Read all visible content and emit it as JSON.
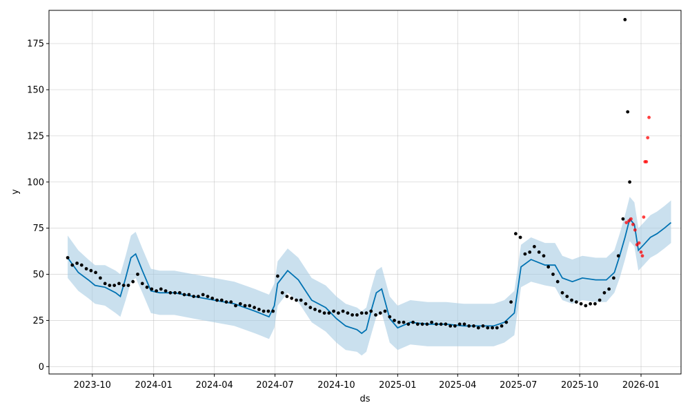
{
  "chart_data": {
    "type": "line",
    "title": "",
    "xlabel": "ds",
    "ylabel": "y",
    "xlim": [
      "2023-07-28",
      "2026-03-02"
    ],
    "ylim": [
      -4,
      193
    ],
    "grid": true,
    "x_tick_labels": [
      "2023-10",
      "2024-01",
      "2024-04",
      "2024-07",
      "2024-10",
      "2025-01",
      "2025-04",
      "2025-07",
      "2025-10",
      "2026-01"
    ],
    "y_tick_labels": [
      "0",
      "25",
      "50",
      "75",
      "100",
      "125",
      "150",
      "175"
    ],
    "colors": {
      "forecast": "#0072B2",
      "band": "#a6cbe3",
      "actual": "#000000",
      "test": "#ff0000"
    },
    "forecast": {
      "x": [
        "2023-08-25",
        "2023-09-10",
        "2023-09-25",
        "2023-10-05",
        "2023-10-20",
        "2023-11-05",
        "2023-11-12",
        "2023-11-20",
        "2023-11-28",
        "2023-12-05",
        "2023-12-15",
        "2023-12-28",
        "2024-01-10",
        "2024-02-01",
        "2024-03-01",
        "2024-04-01",
        "2024-05-01",
        "2024-06-01",
        "2024-06-15",
        "2024-06-22",
        "2024-06-30",
        "2024-07-05",
        "2024-07-20",
        "2024-08-05",
        "2024-08-25",
        "2024-09-15",
        "2024-10-01",
        "2024-10-15",
        "2024-11-01",
        "2024-11-08",
        "2024-11-15",
        "2024-11-22",
        "2024-11-30",
        "2024-12-08",
        "2024-12-20",
        "2025-01-01",
        "2025-01-20",
        "2025-02-15",
        "2025-03-15",
        "2025-04-10",
        "2025-05-01",
        "2025-05-25",
        "2025-06-10",
        "2025-06-25",
        "2025-07-05",
        "2025-07-20",
        "2025-08-10",
        "2025-08-25",
        "2025-09-05",
        "2025-09-20",
        "2025-10-05",
        "2025-10-25",
        "2025-11-10",
        "2025-11-22",
        "2025-11-30",
        "2025-12-08",
        "2025-12-15",
        "2025-12-22",
        "2025-12-28",
        "2026-01-05",
        "2026-01-15",
        "2026-01-25",
        "2026-02-05",
        "2026-02-15"
      ],
      "y": [
        59,
        51,
        47,
        44,
        43,
        40,
        38,
        48,
        59,
        61,
        52,
        41,
        40,
        40,
        38,
        36,
        34,
        30,
        28,
        27,
        33,
        45,
        52,
        47,
        36,
        32,
        26,
        22,
        20,
        18,
        20,
        30,
        40,
        42,
        26,
        21,
        24,
        23,
        23,
        22,
        22,
        22,
        24,
        29,
        54,
        58,
        55,
        55,
        48,
        46,
        48,
        47,
        47,
        51,
        60,
        70,
        80,
        77,
        63,
        66,
        70,
        72,
        75,
        78
      ],
      "lower": [
        48,
        41,
        37,
        34,
        33,
        29,
        27,
        36,
        46,
        48,
        40,
        29,
        28,
        28,
        26,
        24,
        22,
        18,
        16,
        15,
        21,
        33,
        40,
        35,
        24,
        19,
        13,
        9,
        8,
        6,
        8,
        17,
        27,
        29,
        13,
        9,
        12,
        11,
        11,
        11,
        11,
        11,
        13,
        17,
        43,
        46,
        44,
        43,
        36,
        34,
        36,
        35,
        35,
        40,
        48,
        58,
        68,
        65,
        52,
        55,
        59,
        61,
        64,
        67
      ],
      "upper": [
        71,
        63,
        58,
        55,
        55,
        52,
        50,
        60,
        71,
        73,
        64,
        53,
        52,
        52,
        50,
        48,
        46,
        42,
        40,
        39,
        45,
        57,
        64,
        59,
        48,
        44,
        38,
        34,
        32,
        30,
        32,
        42,
        52,
        54,
        38,
        33,
        36,
        35,
        35,
        34,
        34,
        34,
        36,
        41,
        66,
        70,
        67,
        67,
        60,
        58,
        60,
        59,
        59,
        63,
        72,
        82,
        92,
        89,
        75,
        78,
        82,
        84,
        87,
        90
      ]
    },
    "actual": {
      "x": [
        "2023-08-25",
        "2023-09-01",
        "2023-09-08",
        "2023-09-15",
        "2023-09-22",
        "2023-09-29",
        "2023-10-06",
        "2023-10-13",
        "2023-10-20",
        "2023-10-27",
        "2023-11-03",
        "2023-11-10",
        "2023-11-17",
        "2023-11-24",
        "2023-12-01",
        "2023-12-08",
        "2023-12-15",
        "2023-12-22",
        "2023-12-29",
        "2024-01-05",
        "2024-01-12",
        "2024-01-19",
        "2024-01-26",
        "2024-02-02",
        "2024-02-09",
        "2024-02-16",
        "2024-02-23",
        "2024-03-01",
        "2024-03-08",
        "2024-03-15",
        "2024-03-22",
        "2024-03-29",
        "2024-04-05",
        "2024-04-12",
        "2024-04-19",
        "2024-04-26",
        "2024-05-03",
        "2024-05-10",
        "2024-05-17",
        "2024-05-24",
        "2024-05-31",
        "2024-06-07",
        "2024-06-14",
        "2024-06-21",
        "2024-06-28",
        "2024-07-05",
        "2024-07-12",
        "2024-07-19",
        "2024-07-26",
        "2024-08-02",
        "2024-08-09",
        "2024-08-16",
        "2024-08-23",
        "2024-08-30",
        "2024-09-06",
        "2024-09-13",
        "2024-09-20",
        "2024-09-27",
        "2024-10-04",
        "2024-10-11",
        "2024-10-18",
        "2024-10-25",
        "2024-11-01",
        "2024-11-08",
        "2024-11-15",
        "2024-11-22",
        "2024-11-29",
        "2024-12-06",
        "2024-12-13",
        "2024-12-20",
        "2024-12-27",
        "2025-01-03",
        "2025-01-10",
        "2025-01-17",
        "2025-01-24",
        "2025-01-31",
        "2025-02-07",
        "2025-02-14",
        "2025-02-21",
        "2025-02-28",
        "2025-03-07",
        "2025-03-14",
        "2025-03-21",
        "2025-03-28",
        "2025-04-04",
        "2025-04-11",
        "2025-04-18",
        "2025-04-25",
        "2025-05-02",
        "2025-05-09",
        "2025-05-16",
        "2025-05-23",
        "2025-05-30",
        "2025-06-06",
        "2025-06-13",
        "2025-06-20",
        "2025-06-27",
        "2025-07-04",
        "2025-07-11",
        "2025-07-18",
        "2025-07-25",
        "2025-08-01",
        "2025-08-08",
        "2025-08-15",
        "2025-08-22",
        "2025-08-29",
        "2025-09-05",
        "2025-09-12",
        "2025-09-19",
        "2025-09-26",
        "2025-10-03",
        "2025-10-10",
        "2025-10-17",
        "2025-10-24",
        "2025-10-31",
        "2025-11-07",
        "2025-11-14",
        "2025-11-21",
        "2025-11-28",
        "2025-12-05",
        "2025-12-08",
        "2025-12-12",
        "2025-12-15"
      ],
      "y": [
        59,
        55,
        56,
        55,
        53,
        52,
        51,
        48,
        45,
        44,
        44,
        45,
        44,
        44,
        46,
        50,
        45,
        43,
        42,
        41,
        42,
        41,
        40,
        40,
        40,
        39,
        39,
        38,
        38,
        39,
        38,
        37,
        36,
        36,
        35,
        35,
        33,
        34,
        33,
        33,
        32,
        31,
        30,
        30,
        30,
        49,
        40,
        38,
        37,
        36,
        36,
        34,
        32,
        31,
        30,
        29,
        29,
        30,
        29,
        30,
        29,
        28,
        28,
        29,
        29,
        30,
        28,
        29,
        30,
        27,
        25,
        24,
        24,
        23,
        24,
        23,
        23,
        23,
        24,
        23,
        23,
        23,
        22,
        22,
        23,
        23,
        22,
        22,
        21,
        22,
        21,
        21,
        21,
        22,
        24,
        35,
        72,
        70,
        61,
        62,
        65,
        62,
        60,
        54,
        50,
        46,
        40,
        38,
        36,
        35,
        34,
        33,
        34,
        34,
        36,
        40,
        42,
        48,
        60,
        80,
        188,
        138,
        100
      ]
    },
    "test": {
      "x": [
        "2025-12-10",
        "2025-12-14",
        "2025-12-17",
        "2025-12-20",
        "2025-12-23",
        "2025-12-26",
        "2025-12-29",
        "2026-01-01",
        "2026-01-03",
        "2026-01-05",
        "2026-01-07",
        "2026-01-09",
        "2026-01-11",
        "2026-01-13"
      ],
      "y": [
        78,
        79,
        80,
        77,
        74,
        66,
        67,
        62,
        60,
        81,
        111,
        111,
        124,
        135
      ]
    }
  }
}
